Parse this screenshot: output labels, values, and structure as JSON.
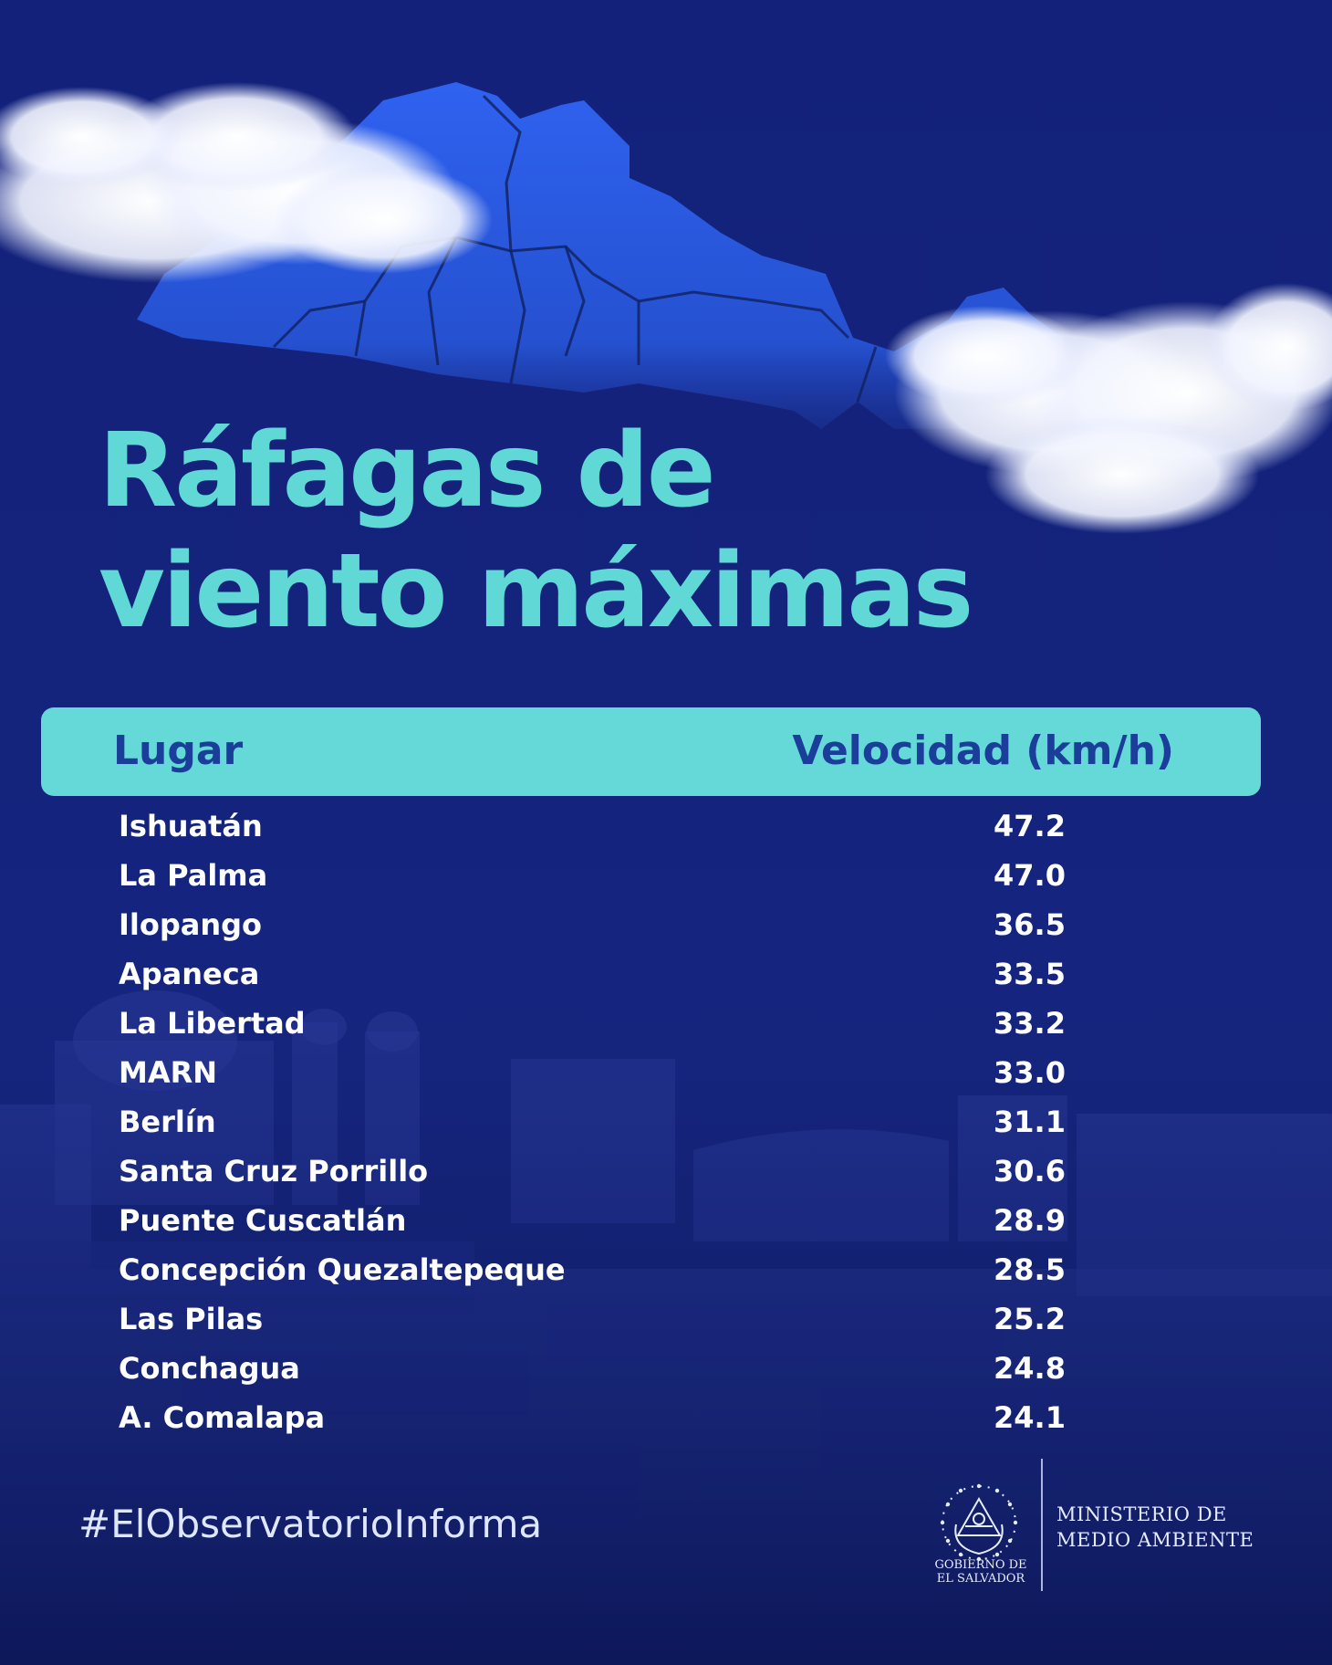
{
  "title": {
    "line1": "Ráfagas de",
    "line2": "viento máximas"
  },
  "table": {
    "header_place": "Lugar",
    "header_speed": "Velocidad (km/h)",
    "rows": [
      {
        "place": "Ishuatán",
        "speed": "47.2"
      },
      {
        "place": "La Palma",
        "speed": "47.0"
      },
      {
        "place": "Ilopango",
        "speed": "36.5"
      },
      {
        "place": "Apaneca",
        "speed": "33.5"
      },
      {
        "place": "La Libertad",
        "speed": "33.2"
      },
      {
        "place": "MARN",
        "speed": "33.0"
      },
      {
        "place": "Berlín",
        "speed": "31.1"
      },
      {
        "place": "Santa Cruz Porrillo",
        "speed": "30.6"
      },
      {
        "place": "Puente Cuscatlán",
        "speed": "28.9"
      },
      {
        "place": "Concepción Quezaltepeque",
        "speed": "28.5"
      },
      {
        "place": "Las Pilas",
        "speed": "25.2"
      },
      {
        "place": "Conchagua",
        "speed": "24.8"
      },
      {
        "place": "A. Comalapa",
        "speed": "24.1"
      }
    ]
  },
  "footer": {
    "hashtag": "#ElObservatorioInforma",
    "gov_line1": "GOBIERNO DE",
    "gov_line2": "EL SALVADOR",
    "ministry_line1": "MINISTERIO DE",
    "ministry_line2": "MEDIO AMBIENTE"
  },
  "colors": {
    "background": "#13217a",
    "map": "#2f5ee6",
    "accent": "#5fd8d6",
    "header_text": "#1b3e9a",
    "row_text": "#ffffff"
  },
  "icons": [
    "el-salvador-map-illustration",
    "cloud-left",
    "cloud-right",
    "city-skyline-photo",
    "coat-of-arms-icon"
  ]
}
